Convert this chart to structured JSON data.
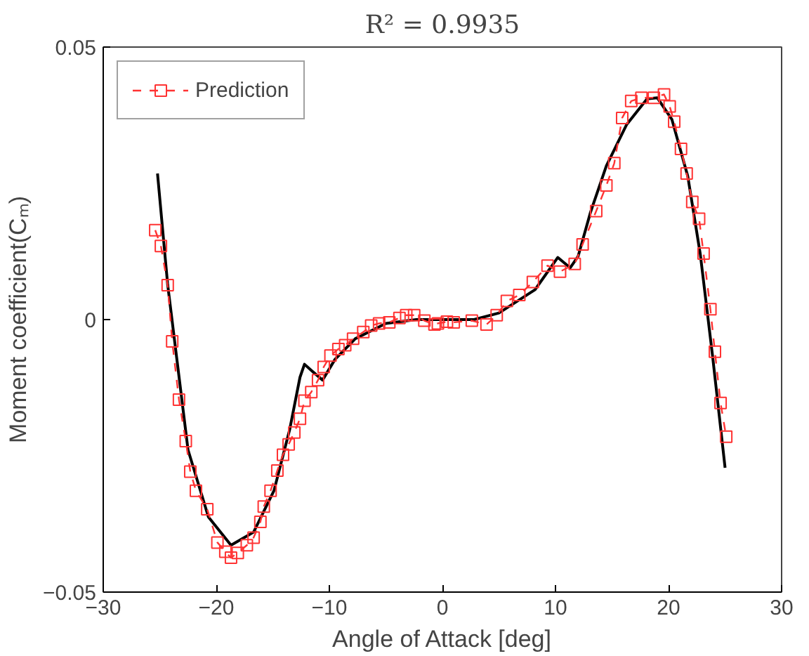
{
  "chart_data": {
    "type": "line",
    "title": "R² = 0.9935",
    "xlabel": "Angle of Attack [deg]",
    "ylabel": "Moment coefficient(Cₘ)",
    "xlim": [
      -30,
      30
    ],
    "xticks": [
      -30,
      -20,
      -10,
      0,
      10,
      20,
      30
    ],
    "ylim": [
      -0.05,
      0.05
    ],
    "yticks": [
      -0.05,
      0,
      0.05
    ],
    "grid": false,
    "legend": "top left",
    "series": [
      {
        "color": "#000000",
        "line_style": "solid",
        "marker": "none",
        "x": [
          -25.2,
          -24.3,
          -22.5,
          -20.7,
          -18.7,
          -16.7,
          -14.9,
          -13.5,
          -12.6,
          -12.2,
          -11.5,
          -10.6,
          -9.5,
          -7.7,
          -5,
          -2.3,
          0,
          2.8,
          5,
          8.2,
          10.2,
          11.3,
          12,
          13.1,
          14.5,
          16.3,
          18.1,
          19,
          20.3,
          21.7,
          22.8,
          23.9,
          25
        ],
        "values": [
          0.0268,
          0.0064,
          -0.0239,
          -0.0362,
          -0.0414,
          -0.039,
          -0.0314,
          -0.0201,
          -0.0106,
          -0.0082,
          -0.0095,
          -0.0111,
          -0.0073,
          -0.0035,
          -0.0007,
          0,
          0,
          0,
          0.0012,
          0.0055,
          0.0114,
          0.0095,
          0.0116,
          0.0197,
          0.0282,
          0.0358,
          0.0405,
          0.0407,
          0.0367,
          0.0263,
          0.0121,
          -0.0068,
          -0.0272
        ]
      },
      {
        "name": "Prediction",
        "color": "#ff3333",
        "line_style": "dashed",
        "marker": "square",
        "x": [
          -25.4,
          -24.9,
          -24.3,
          -23.9,
          -23.3,
          -22.7,
          -22.3,
          -21.8,
          -20.8,
          -19.9,
          -19.2,
          -18.7,
          -18.1,
          -17.3,
          -16.7,
          -16.1,
          -15.8,
          -15.2,
          -14.6,
          -14.1,
          -13.6,
          -13.1,
          -12.6,
          -12.2,
          -11.6,
          -11.0,
          -10.5,
          -9.9,
          -9.2,
          -8.6,
          -7.9,
          -7.0,
          -6.3,
          -5.6,
          -4.7,
          -3.8,
          -3.2,
          -2.5,
          -1.6,
          -0.7,
          -0.4,
          0.4,
          1.0,
          2.6,
          3.9,
          4.8,
          5.7,
          6.8,
          8.0,
          9.3,
          10.4,
          11.7,
          12.4,
          13.6,
          14.5,
          15.2,
          15.9,
          16.7,
          17.6,
          18.7,
          19.6,
          20.1,
          20.5,
          21.1,
          21.6,
          22.1,
          22.7,
          23.1,
          23.7,
          24.1,
          24.6,
          25.1
        ],
        "values": [
          0.0164,
          0.0135,
          0.0063,
          -0.004,
          -0.0147,
          -0.0223,
          -0.0279,
          -0.0314,
          -0.0348,
          -0.0409,
          -0.0426,
          -0.0437,
          -0.0428,
          -0.0414,
          -0.04,
          -0.0371,
          -0.0343,
          -0.0314,
          -0.0277,
          -0.0248,
          -0.0229,
          -0.0207,
          -0.0182,
          -0.0149,
          -0.0133,
          -0.0111,
          -0.0087,
          -0.0066,
          -0.0054,
          -0.0047,
          -0.0035,
          -0.0023,
          -0.0011,
          -0.0007,
          -0.0005,
          0.0003,
          0.0008,
          0.0008,
          -0.0002,
          -0.0009,
          -0.0007,
          -0.0004,
          -0.0005,
          -0.0002,
          -0.0009,
          0.0008,
          0.0034,
          0.0045,
          0.0069,
          0.0099,
          0.0088,
          0.0102,
          0.0138,
          0.0199,
          0.0246,
          0.0287,
          0.037,
          0.0401,
          0.0407,
          0.0407,
          0.0413,
          0.0391,
          0.0363,
          0.0313,
          0.0268,
          0.0216,
          0.0185,
          0.0121,
          0.0019,
          -0.0059,
          -0.0153,
          -0.0215
        ]
      }
    ]
  }
}
